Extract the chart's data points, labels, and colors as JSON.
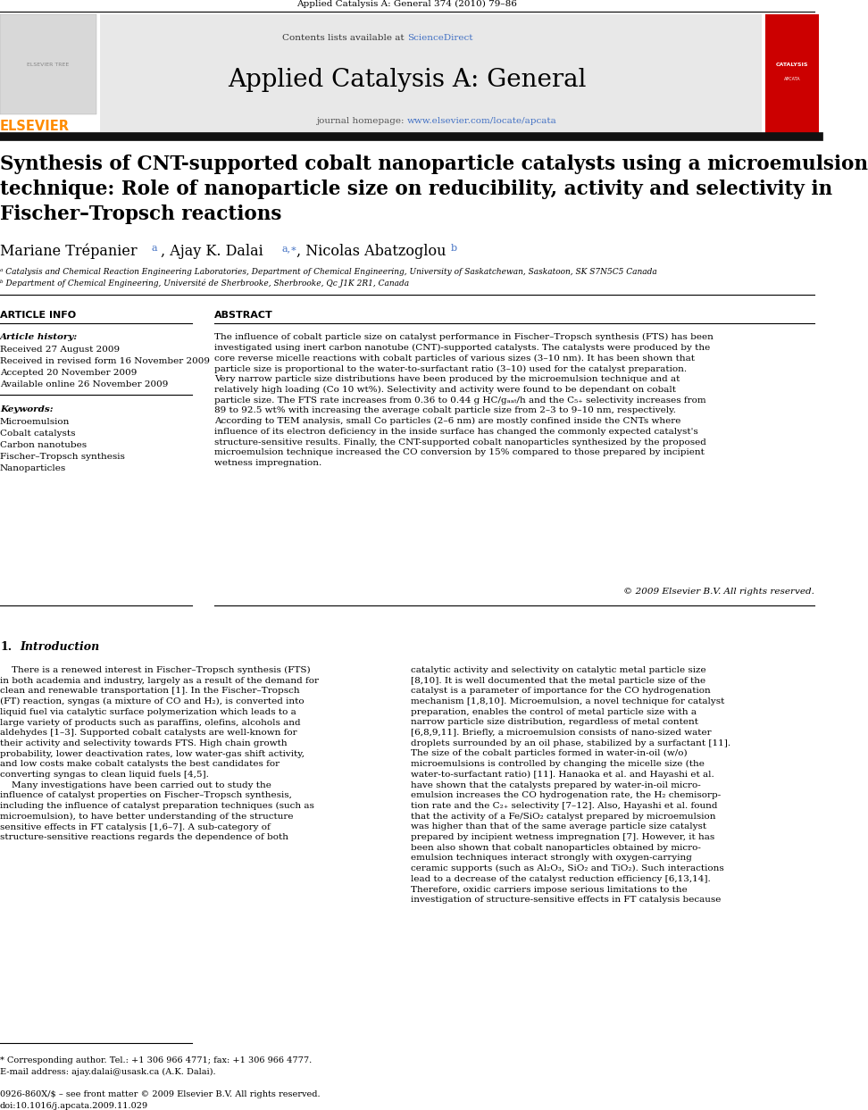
{
  "page_width": 9.92,
  "page_height": 13.23,
  "bg_color": "#ffffff",
  "top_journal_ref": "Applied Catalysis A: General 374 (2010) 79–86",
  "header_sciencedirect_color": "#4472c4",
  "header_journal_name": "Applied Catalysis A: General",
  "header_homepage_color": "#4472c4",
  "elsevier_color": "#ff8c00",
  "article_title_line1": "Synthesis of CNT-supported cobalt nanoparticle catalysts using a microemulsion",
  "article_title_line2": "technique: Role of nanoparticle size on reducibility, activity and selectivity in",
  "article_title_line3": "Fischer–Tropsch reactions",
  "article_title_fontsize": 15.5,
  "author_line": "Mariane Trépanier ",
  "author_mid": ", Ajay K. Dalai ",
  "author_end": ", Nicolas Abatzoglou ",
  "affil1": "ᵃ Catalysis and Chemical Reaction Engineering Laboratories, Department of Chemical Engineering, University of Saskatchewan, Saskatoon, SK S7N5C5 Canada",
  "affil2": "ᵇ Department of Chemical Engineering, Université de Sherbrooke, Sherbrooke, Qc J1K 2R1, Canada",
  "article_info_title": "ARTICLE INFO",
  "abstract_title": "ABSTRACT",
  "article_history_label": "Article history:",
  "received1": "Received 27 August 2009",
  "received2": "Received in revised form 16 November 2009",
  "accepted": "Accepted 20 November 2009",
  "available": "Available online 26 November 2009",
  "keywords_label": "Keywords:",
  "keywords": [
    "Microemulsion",
    "Cobalt catalysts",
    "Carbon nanotubes",
    "Fischer–Tropsch synthesis",
    "Nanoparticles"
  ],
  "abstract_text": "The influence of cobalt particle size on catalyst performance in Fischer–Tropsch synthesis (FTS) has been\ninvestigated using inert carbon nanotube (CNT)-supported catalysts. The catalysts were produced by the\ncore reverse micelle reactions with cobalt particles of various sizes (3–10 nm). It has been shown that\nparticle size is proportional to the water-to-surfactant ratio (3–10) used for the catalyst preparation.\nVery narrow particle size distributions have been produced by the microemulsion technique and at\nrelatively high loading (Co 10 wt%). Selectivity and activity were found to be dependant on cobalt\nparticle size. The FTS rate increases from 0.36 to 0.44 g HC/gₐₐₜ/h and the C₅₊ selectivity increases from\n89 to 92.5 wt% with increasing the average cobalt particle size from 2–3 to 9–10 nm, respectively.\nAccording to TEM analysis, small Co particles (2–6 nm) are mostly confined inside the CNTs where\ninfluence of its electron deficiency in the inside surface has changed the commonly expected catalyst's\nstructure-sensitive results. Finally, the CNT-supported cobalt nanoparticles synthesized by the proposed\nmicroemulsion technique increased the CO conversion by 15% compared to those prepared by incipient\nwetness impregnation.",
  "copyright": "© 2009 Elsevier B.V. All rights reserved.",
  "intro_heading_num": "1.",
  "intro_heading_text": "Introduction",
  "intro_col1_indent": "    There is a renewed interest in Fischer–Tropsch synthesis (FTS)\nin both academia and industry, largely as a result of the demand for\nclean and renewable transportation [1]. In the Fischer–Tropsch\n(FT) reaction, syngas (a mixture of CO and H₂), is converted into\nliquid fuel via catalytic surface polymerization which leads to a\nlarge variety of products such as paraffins, olefins, alcohols and\naldehydes [1–3]. Supported cobalt catalysts are well-known for\ntheir activity and selectivity towards FTS. High chain growth\nprobability, lower deactivation rates, low water-gas shift activity,\nand low costs make cobalt catalysts the best candidates for\nconverting syngas to clean liquid fuels [4,5].\n    Many investigations have been carried out to study the\ninfluence of catalyst properties on Fischer–Tropsch synthesis,\nincluding the influence of catalyst preparation techniques (such as\nmicroemulsion), to have better understanding of the structure\nsensitive effects in FT catalysis [1,6–7]. A sub-category of\nstructure-sensitive reactions regards the dependence of both",
  "intro_col2": "catalytic activity and selectivity on catalytic metal particle size\n[8,10]. It is well documented that the metal particle size of the\ncatalyst is a parameter of importance for the CO hydrogenation\nmechanism [1,8,10]. Microemulsion, a novel technique for catalyst\npreparation, enables the control of metal particle size with a\nnarrow particle size distribution, regardless of metal content\n[6,8,9,11]. Briefly, a microemulsion consists of nano-sized water\ndroplets surrounded by an oil phase, stabilized by a surfactant [11].\nThe size of the cobalt particles formed in water-in-oil (w/o)\nmicroemulsions is controlled by changing the micelle size (the\nwater-to-surfactant ratio) [11]. Hanaoka et al. and Hayashi et al.\nhave shown that the catalysts prepared by water-in-oil micro-\nemulsion increases the CO hydrogenation rate, the H₂ chemisorp-\ntion rate and the C₂₊ selectivity [7–12]. Also, Hayashi et al. found\nthat the activity of a Fe/SiO₂ catalyst prepared by microemulsion\nwas higher than that of the same average particle size catalyst\nprepared by incipient wetness impregnation [7]. However, it has\nbeen also shown that cobalt nanoparticles obtained by micro-\nemulsion techniques interact strongly with oxygen-carrying\nceramic supports (such as Al₂O₃, SiO₂ and TiO₂). Such interactions\nlead to a decrease of the catalyst reduction efficiency [6,13,14].\nTherefore, oxidic carriers impose serious limitations to the\ninvestigation of structure-sensitive effects in FT catalysis because",
  "footnote_star": "* Corresponding author. Tel.: +1 306 966 4771; fax: +1 306 966 4777.",
  "footnote_email": "E-mail address: ajay.dalai@usask.ca (A.K. Dalai).",
  "footer_issn": "0926-860X/$ – see front matter © 2009 Elsevier B.V. All rights reserved.",
  "footer_doi": "doi:10.1016/j.apcata.2009.11.029"
}
